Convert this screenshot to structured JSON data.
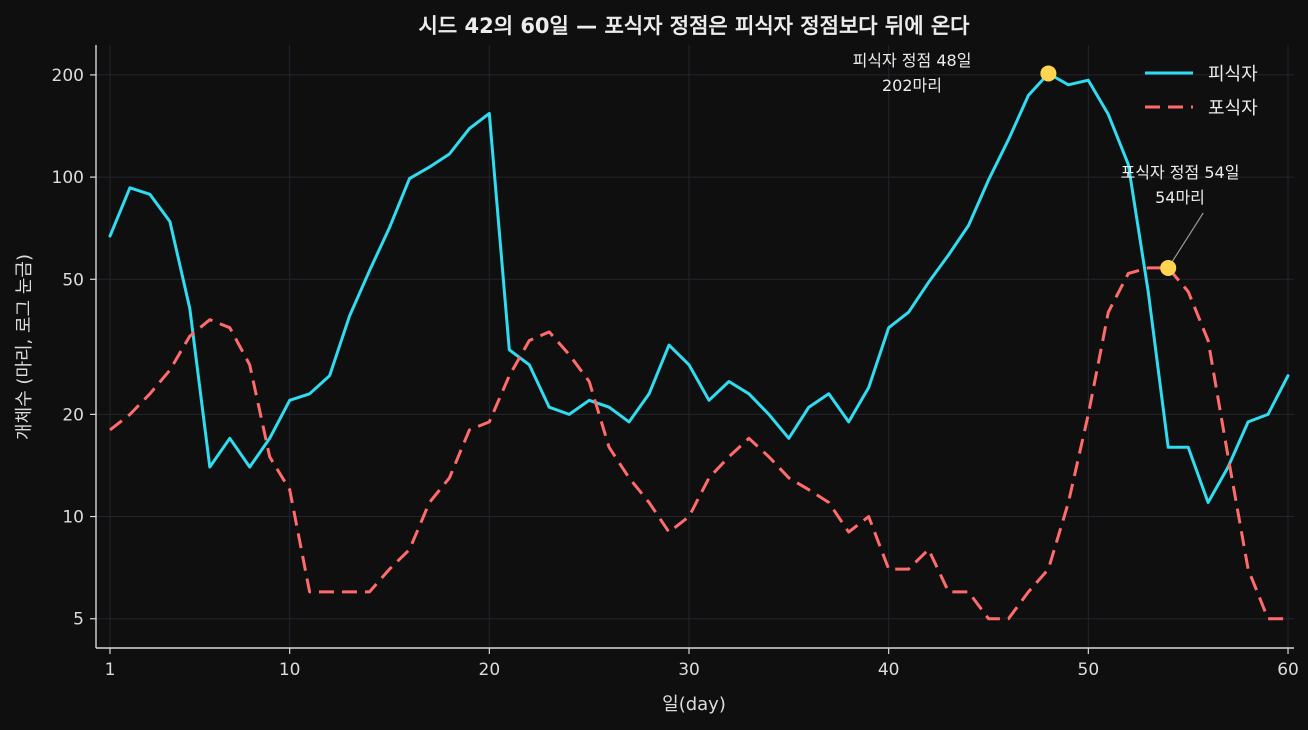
{
  "chart_data": {
    "type": "line",
    "title": "시드 42의 60일 — 포식자 정점은 피식자 정점보다 뒤에 온다",
    "xlabel": "일(day)",
    "ylabel": "개체수 (마리, 로그 눈금)",
    "yscale": "log",
    "xlim": [
      0.3,
      60.3
    ],
    "ylim": [
      4.1,
      245
    ],
    "x_ticks": [
      1,
      10,
      20,
      30,
      40,
      50,
      60
    ],
    "y_ticks": [
      5,
      10,
      20,
      50,
      100,
      200
    ],
    "grid": true,
    "legend_position": "top-right",
    "x": [
      1,
      2,
      3,
      4,
      5,
      6,
      7,
      8,
      9,
      10,
      11,
      12,
      13,
      14,
      15,
      16,
      17,
      18,
      19,
      20,
      21,
      22,
      23,
      24,
      25,
      26,
      27,
      28,
      29,
      30,
      31,
      32,
      33,
      34,
      35,
      36,
      37,
      38,
      39,
      40,
      41,
      42,
      43,
      44,
      45,
      46,
      47,
      48,
      49,
      50,
      51,
      52,
      53,
      54,
      55,
      56,
      57,
      58,
      59,
      60
    ],
    "series": [
      {
        "name": "피식자",
        "color": "#2fdcf0",
        "dash": "solid",
        "values": [
          67,
          93,
          89,
          74,
          41,
          14,
          17,
          14,
          17,
          22,
          23,
          26,
          39,
          53,
          71,
          99,
          107,
          117,
          139,
          154,
          31,
          28,
          21,
          20,
          22,
          21,
          19,
          23,
          32,
          28,
          22,
          25,
          23,
          20,
          17,
          21,
          23,
          19,
          24,
          36,
          40,
          49,
          59,
          72,
          98,
          129,
          174,
          202,
          187,
          193,
          153,
          109,
          46,
          16,
          16,
          11,
          14,
          19,
          20,
          26
        ],
        "peak": {
          "day": 48,
          "value": 202,
          "annotation": [
            "피식자 정점 48일",
            "202마리"
          ]
        }
      },
      {
        "name": "포식자",
        "color": "#ff6b6b",
        "dash": "dashed",
        "values": [
          18,
          20,
          23,
          27,
          34,
          38,
          36,
          28,
          15,
          12,
          6,
          6,
          6,
          6,
          7,
          8,
          11,
          13,
          18,
          19,
          26,
          33,
          35,
          30,
          25,
          16,
          13,
          11,
          9,
          10,
          13,
          15,
          17,
          15,
          13,
          12,
          11,
          9,
          10,
          7,
          7,
          8,
          6,
          6,
          5,
          5,
          6,
          7,
          11,
          20,
          40,
          52,
          54,
          54,
          46,
          33,
          15,
          7,
          5,
          5
        ],
        "peak": {
          "day": 54,
          "value": 54,
          "annotation": [
            "포식자 정점 54일",
            "54마리"
          ]
        }
      }
    ],
    "peak_marker_color": "#ffd54f"
  }
}
